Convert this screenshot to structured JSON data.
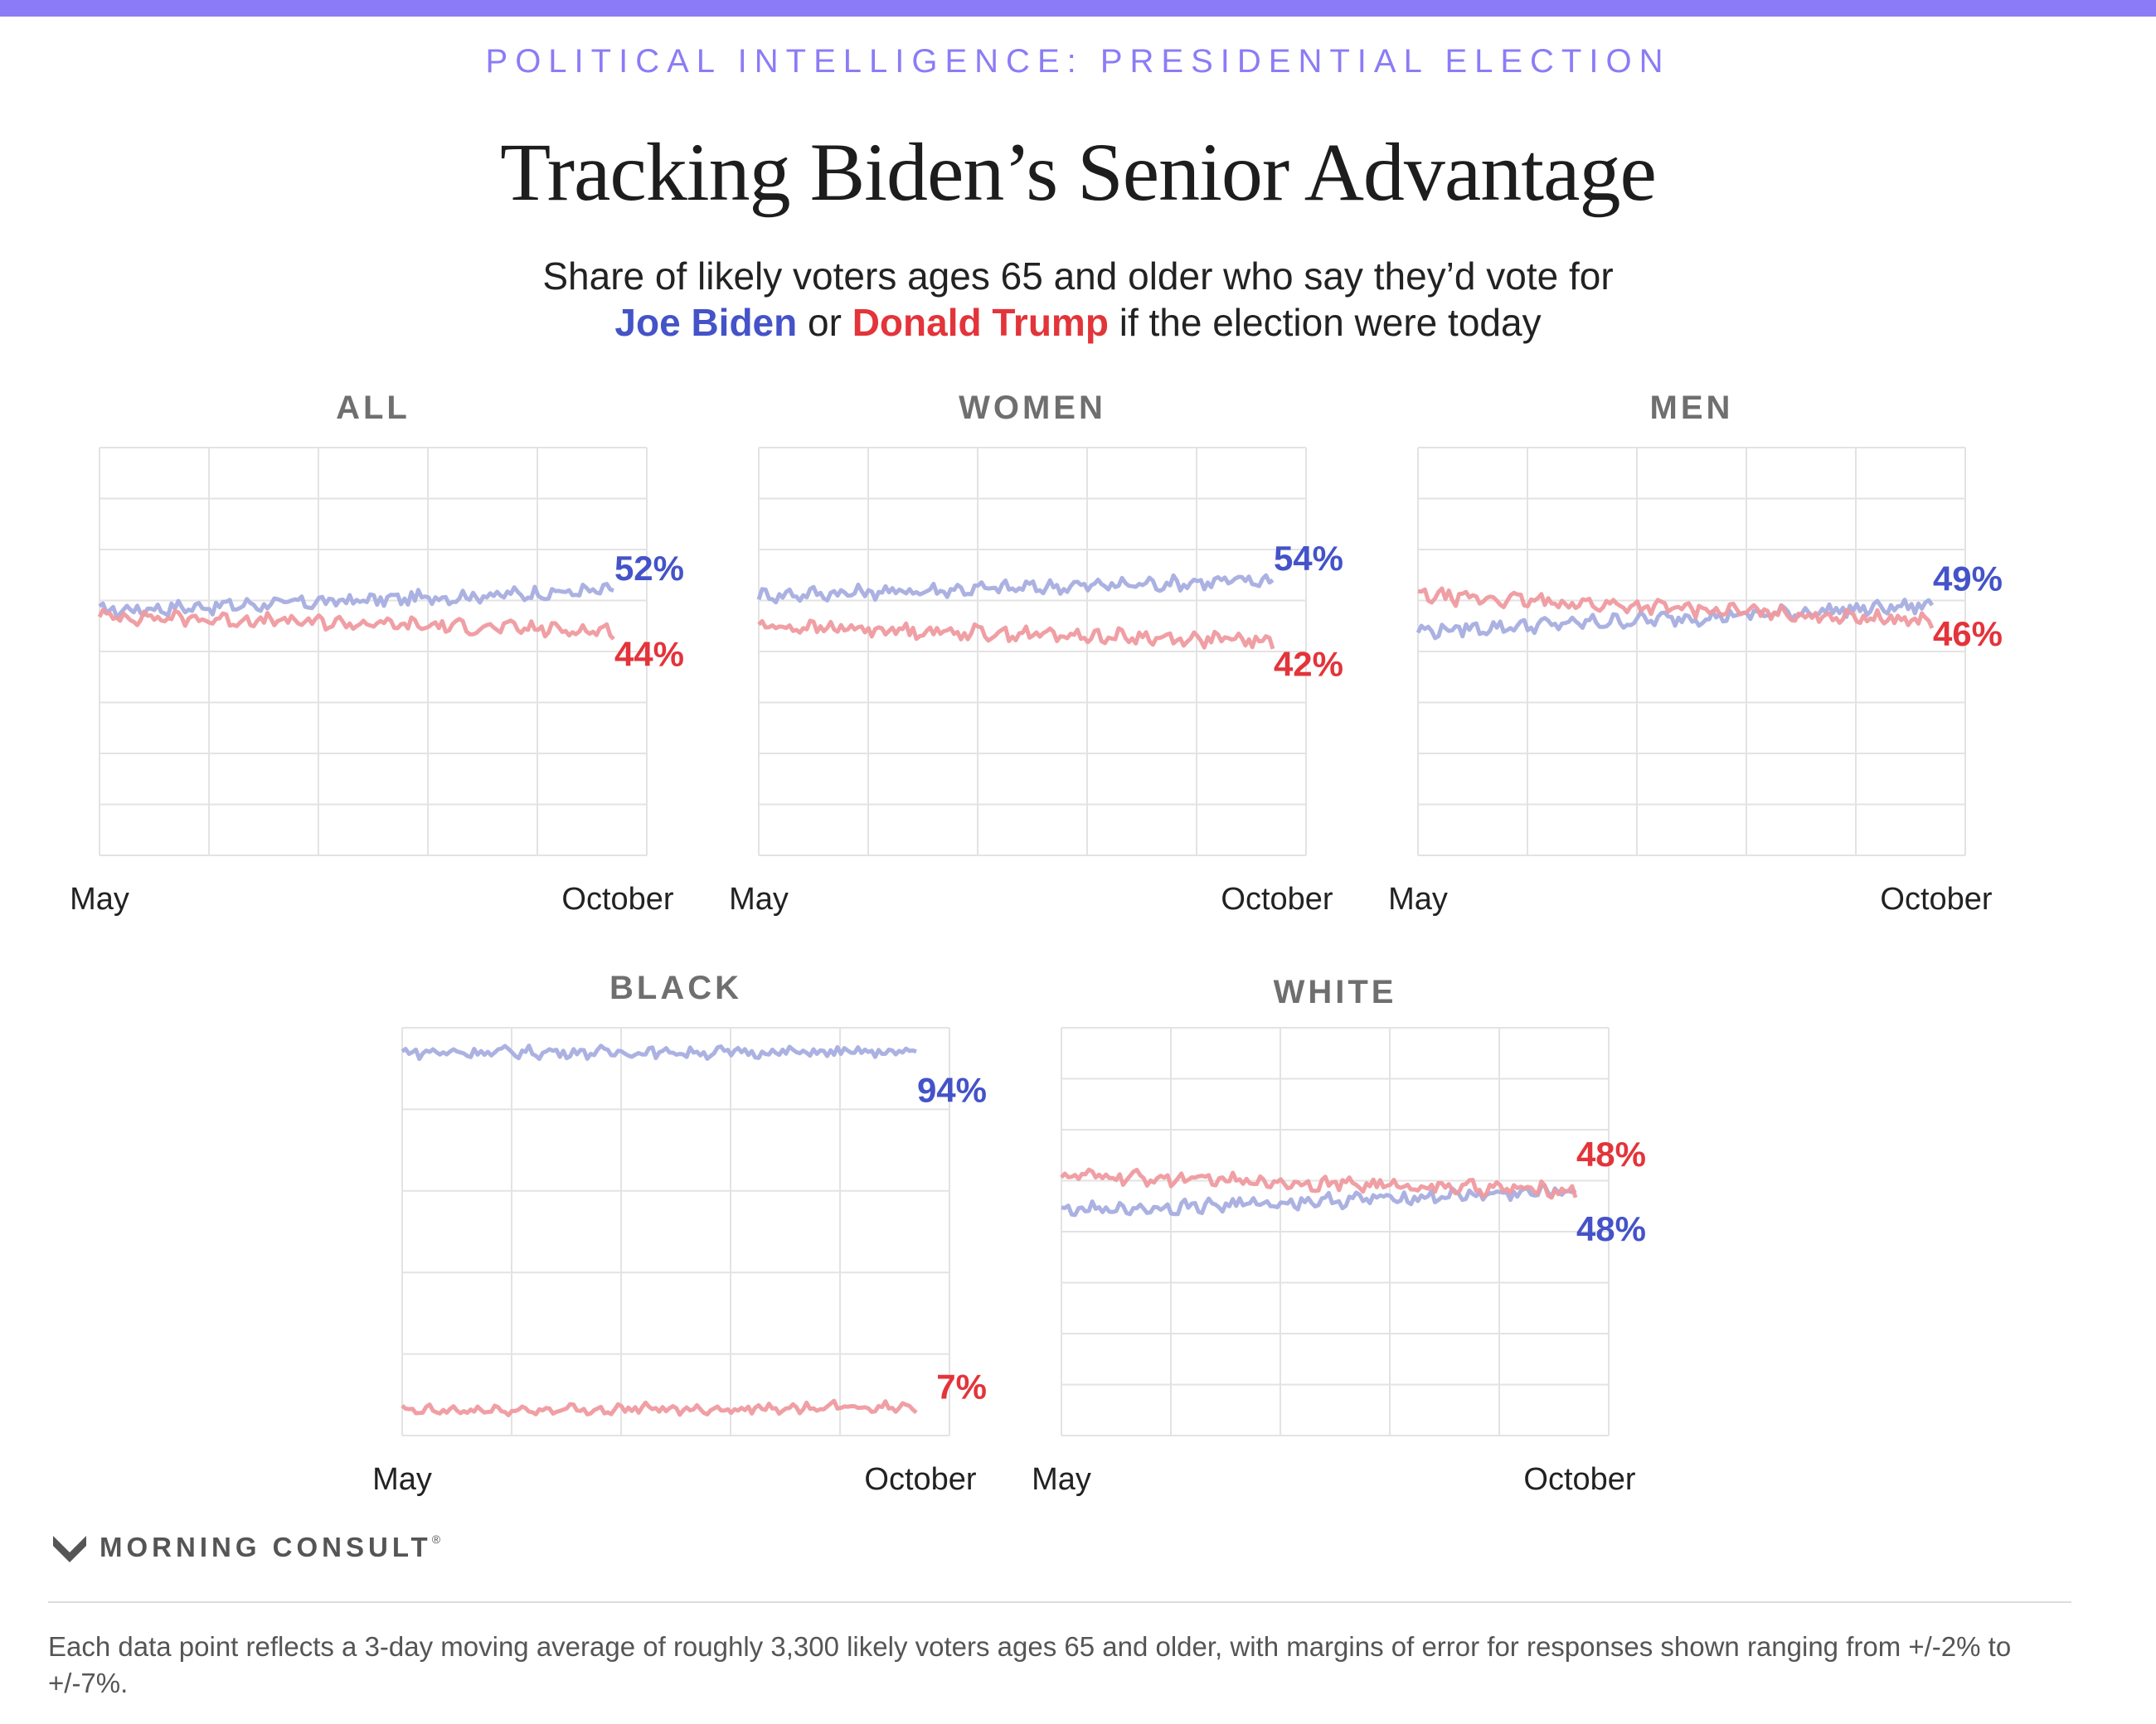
{
  "header": {
    "kicker": "POLITICAL INTELLIGENCE: PRESIDENTIAL ELECTION",
    "title": "Tracking Biden’s Senior Advantage",
    "subtitle_line1": "Share of likely voters ages 65 and older who say they’d vote for",
    "biden_label": "Joe Biden",
    "or_text": "or",
    "trump_label": "Donald Trump",
    "subtitle_tail": "if the election were today"
  },
  "colors": {
    "accent_bar": "#8b7cf6",
    "kicker": "#8b7cf6",
    "biden_line": "#a6aee0",
    "trump_line": "#ef9a9f",
    "biden_text": "#4453c8",
    "trump_text": "#e3343a",
    "grid": "#e3e3e3",
    "panel_title": "#6f6f6f"
  },
  "chart_data": [
    {
      "type": "line",
      "title": "ALL",
      "x": [
        "May",
        "October"
      ],
      "ylim": [
        0,
        80
      ],
      "grid": true,
      "series": [
        {
          "name": "Joe Biden",
          "start": 48,
          "end": 52,
          "label": "52%"
        },
        {
          "name": "Donald Trump",
          "start": 47,
          "end": 44,
          "label": "44%"
        }
      ]
    },
    {
      "type": "line",
      "title": "WOMEN",
      "x": [
        "May",
        "October"
      ],
      "ylim": [
        0,
        80
      ],
      "grid": true,
      "series": [
        {
          "name": "Joe Biden",
          "start": 51,
          "end": 54,
          "label": "54%"
        },
        {
          "name": "Donald Trump",
          "start": 45,
          "end": 42,
          "label": "42%"
        }
      ]
    },
    {
      "type": "line",
      "title": "MEN",
      "x": [
        "May",
        "October"
      ],
      "ylim": [
        0,
        80
      ],
      "grid": true,
      "series": [
        {
          "name": "Joe Biden",
          "start": 44,
          "end": 49,
          "label": "49%"
        },
        {
          "name": "Donald Trump",
          "start": 51,
          "end": 46,
          "label": "46%"
        }
      ]
    },
    {
      "type": "line",
      "title": "BLACK",
      "x": [
        "May",
        "October"
      ],
      "ylim": [
        0,
        100
      ],
      "grid": true,
      "series": [
        {
          "name": "Joe Biden",
          "start": 94,
          "end": 94,
          "label": "94%"
        },
        {
          "name": "Donald Trump",
          "start": 6,
          "end": 7,
          "label": "7%"
        }
      ]
    },
    {
      "type": "line",
      "title": "WHITE",
      "x": [
        "May",
        "October"
      ],
      "ylim": [
        0,
        80
      ],
      "grid": true,
      "series": [
        {
          "name": "Joe Biden",
          "start": 44,
          "end": 48,
          "label": "48%"
        },
        {
          "name": "Donald Trump",
          "start": 51,
          "end": 48,
          "label": "48%"
        }
      ]
    }
  ],
  "brand": {
    "name": "MORNING CONSULT",
    "mark": "®"
  },
  "footnote": "Each data point reflects a 3-day moving average of roughly 3,300 likely voters ages 65 and older, with margins of error for responses shown ranging from +/-2% to +/-7%."
}
